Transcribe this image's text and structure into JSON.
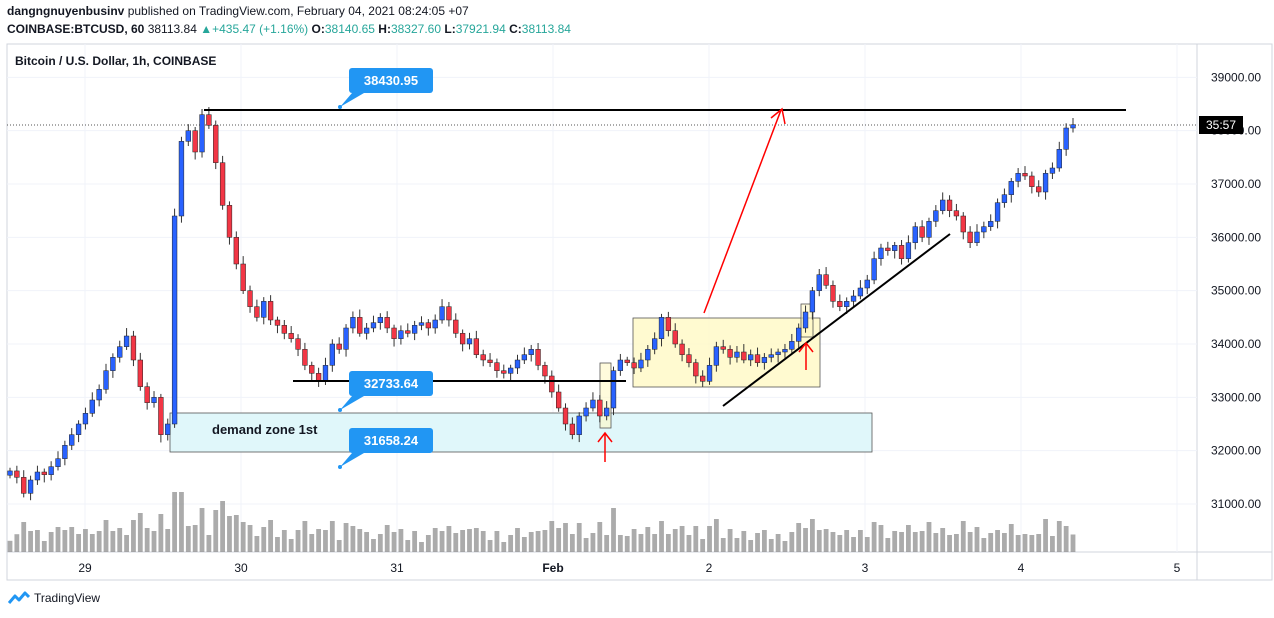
{
  "header": {
    "publisher": "dangngnuyenbusinv",
    "published_text": "published on TradingView.com, February 04, 2021 08:24:05 +07",
    "symbol": "COINBASE:BTCUSD, 60",
    "last_price": "38113.84",
    "change_arrow": "▲",
    "change": "+435.47 (+1.16%)",
    "o_label": "O:",
    "o_value": "38140.65",
    "h_label": "H:",
    "h_value": "38327.60",
    "l_label": "L:",
    "l_value": "37921.94",
    "c_label": "C:",
    "c_value": "38113.84"
  },
  "footer": {
    "brand": "TradingView",
    "logo_icon": "tradingview-logo-icon"
  },
  "colors": {
    "up": "#26a69a",
    "down": "#ef5350",
    "candle_up": "#2962ff",
    "candle_down": "#f23645",
    "volume": "#888888",
    "callout": "#2196f3",
    "arrow": "#ff0000",
    "grid": "#f0f3fa"
  },
  "chart_data": {
    "type": "candlestick",
    "title": "Bitcoin / U.S. Dollar, 1h, COINBASE",
    "x_tick_labels": [
      "29",
      "30",
      "31",
      "Feb",
      "2",
      "3",
      "4",
      "5"
    ],
    "y_ticks": [
      31000,
      32000,
      33000,
      34000,
      35000,
      36000,
      37000,
      38000,
      39000
    ],
    "y_tick_labels": [
      "31000.00",
      "32000.00",
      "33000.00",
      "34000.00",
      "35000.00",
      "36000.00",
      "37000.00",
      "38000.00",
      "39000.00"
    ],
    "ylim": [
      30100,
      39400
    ],
    "last_price": 38113.84,
    "countdown": "35:57",
    "candles_close": [
      31620,
      31500,
      31200,
      31450,
      31600,
      31550,
      31700,
      31850,
      32100,
      32300,
      32500,
      32700,
      32950,
      33150,
      33500,
      33750,
      33950,
      34150,
      33700,
      33200,
      32900,
      33000,
      32300,
      32500,
      36400,
      37800,
      38000,
      37600,
      38300,
      38100,
      37400,
      36600,
      36000,
      35500,
      35000,
      34700,
      34500,
      34800,
      34450,
      34350,
      34200,
      34100,
      33900,
      33600,
      33450,
      33300,
      33600,
      34000,
      33900,
      34300,
      34500,
      34200,
      34300,
      34400,
      34500,
      34300,
      34100,
      34250,
      34200,
      34350,
      34400,
      34300,
      34450,
      34700,
      34450,
      34200,
      34000,
      34100,
      33800,
      33700,
      33650,
      33500,
      33450,
      33550,
      33700,
      33800,
      33900,
      33600,
      33400,
      33100,
      32800,
      32500,
      32300,
      32650,
      32800,
      32950,
      32650,
      32800,
      33500,
      33700,
      33650,
      33550,
      33700,
      33900,
      34100,
      34500,
      34250,
      34000,
      33800,
      33650,
      33400,
      33300,
      33600,
      33950,
      33900,
      33750,
      33850,
      33700,
      33800,
      33650,
      33750,
      33800,
      33850,
      33900,
      34050,
      34300,
      34600,
      35000,
      35300,
      35100,
      34800,
      34700,
      34800,
      34900,
      35050,
      35200,
      35600,
      35800,
      35750,
      35850,
      35600,
      35900,
      36200,
      36000,
      36300,
      36500,
      36700,
      36500,
      36400,
      36100,
      35900,
      36100,
      36200,
      36300,
      36650,
      36800,
      37050,
      37200,
      37150,
      36950,
      36850,
      37200,
      37300,
      37650,
      38050,
      38113
    ],
    "annotations": {
      "callout_top": "38430.95",
      "callout_mid": "32733.64",
      "callout_low": "31658.24",
      "zone_label": "demand zone 1st"
    },
    "levels": {
      "resistance": 38430.95,
      "support": 32733.64,
      "zone_low": 31950,
      "zone_high": 32700
    },
    "legend": "none",
    "grid": true
  }
}
